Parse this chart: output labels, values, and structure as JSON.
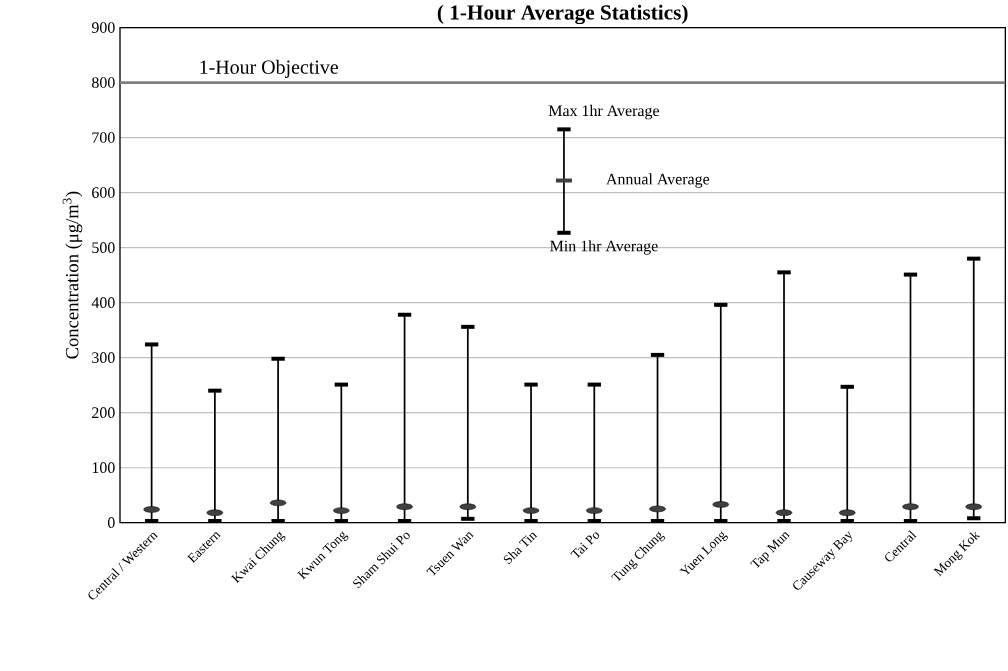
{
  "chart_data": {
    "type": "scatter",
    "title": "( 1-Hour Average Statistics)",
    "ylabel": "Concentration (μg/m$^{3}$)",
    "categories": [
      "Central / Western",
      "Eastern",
      "Kwai Chung",
      "Kwun Tong",
      "Sham Shui Po",
      "Tsuen Wan",
      "Sha Tin",
      "Tai Po",
      "Tung Chung",
      "Yuen Long",
      "Tap Mun",
      "Causeway Bay",
      "Central",
      "Mong Kok"
    ],
    "series": [
      {
        "name": "Annual Average",
        "color": "#404040",
        "values": [
          24,
          18,
          36,
          22,
          29,
          29,
          22,
          22,
          25,
          33,
          18,
          18,
          29,
          29
        ],
        "errors": [
          [
            3,
            324
          ],
          [
            3,
            240
          ],
          [
            3,
            298
          ],
          [
            3,
            251
          ],
          [
            3,
            378
          ],
          [
            7,
            356
          ],
          [
            3,
            251
          ],
          [
            3,
            251
          ],
          [
            3,
            305
          ],
          [
            3,
            396
          ],
          [
            3,
            455
          ],
          [
            3,
            247
          ],
          [
            3,
            451
          ],
          [
            8,
            480
          ]
        ]
      }
    ],
    "ylim": [
      0,
      900
    ],
    "yticks": [
      0,
      100,
      200,
      300,
      400,
      500,
      600,
      700,
      800,
      900
    ],
    "grid": "y",
    "legend": "top",
    "ref_lines": [
      {
        "axis": "y",
        "value": 800,
        "label": "1-Hour Objective",
        "color": "#808080"
      }
    ],
    "annotations": [
      "Max 1hr Average",
      "Min 1hr Average"
    ]
  }
}
